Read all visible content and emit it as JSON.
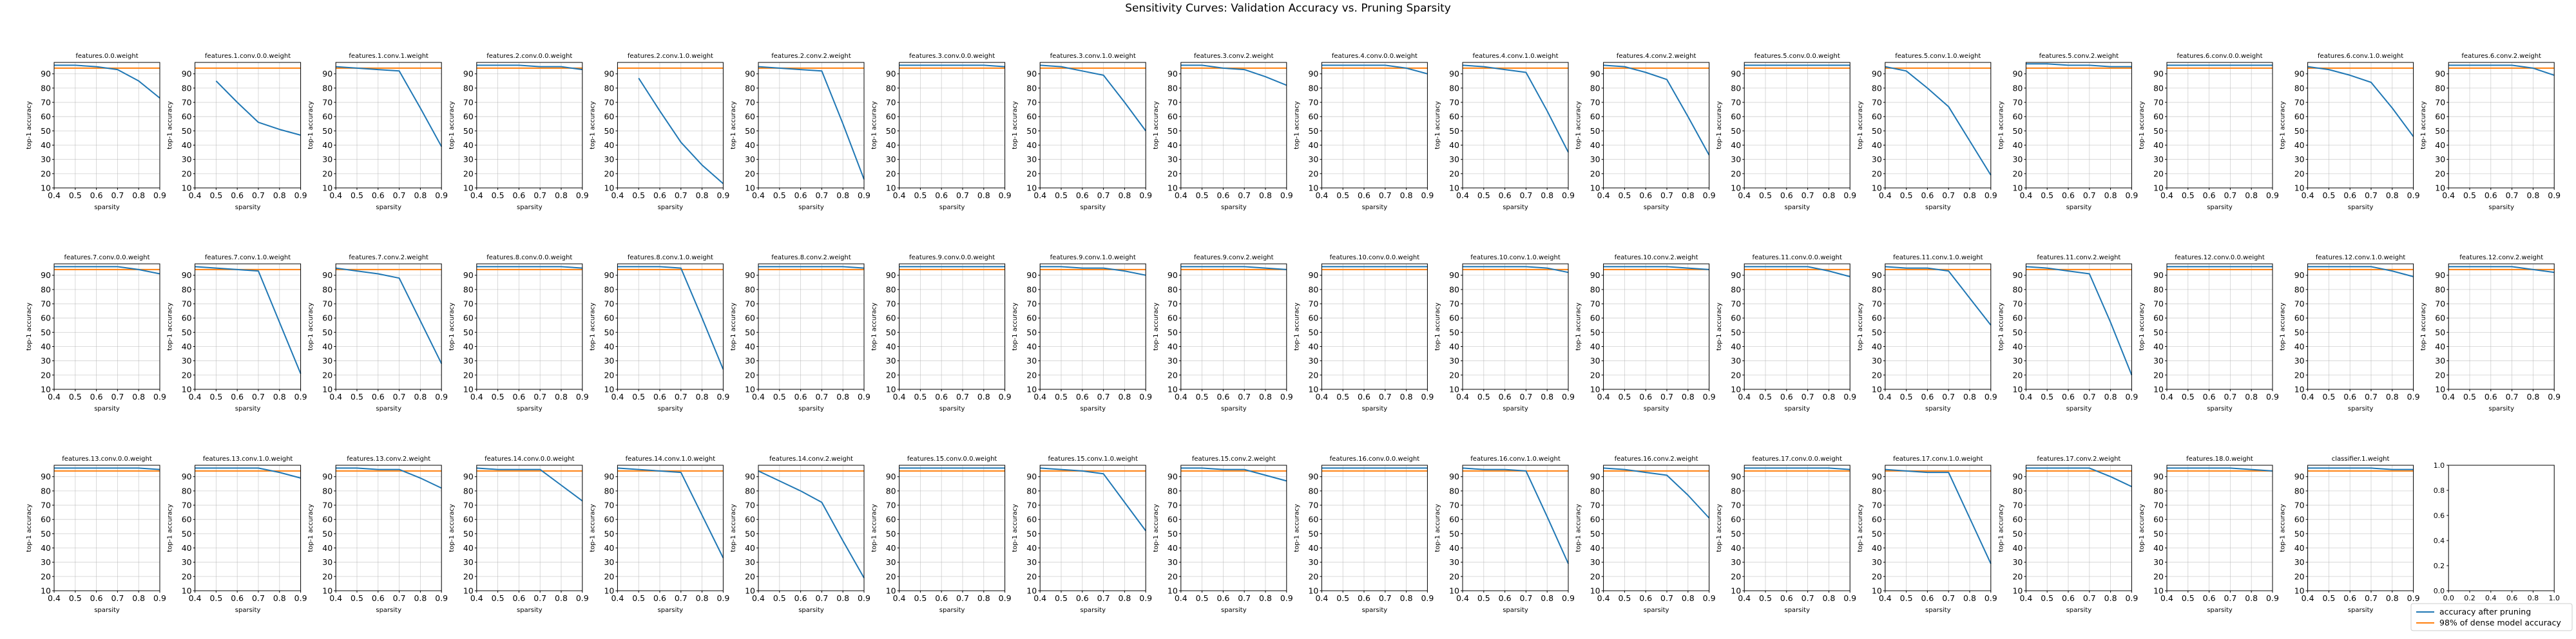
{
  "figure": {
    "title": "Sensitivity Curves: Validation Accuracy vs. Pruning Sparsity",
    "xlabel": "sparsity",
    "ylabel": "top-1 accuracy",
    "xticks": [
      0.4,
      0.5,
      0.6,
      0.7,
      0.8,
      0.9
    ],
    "yticks": [
      10,
      20,
      30,
      40,
      50,
      60,
      70,
      80,
      90
    ],
    "xlim": [
      0.4,
      0.9
    ],
    "ylim": [
      10,
      98
    ],
    "grid": true,
    "colors": {
      "pruned": "#1f77b4",
      "threshold": "#ff7f0e"
    },
    "legend": {
      "placement": "bottom-right",
      "entries": [
        "accuracy after pruning",
        "98% of dense model accuracy"
      ]
    },
    "empty_axes_ticks": [
      "0.0",
      "0.2",
      "0.4",
      "0.6",
      "0.8",
      "1.0"
    ]
  },
  "chart_data": {
    "type": "line",
    "x": [
      0.4,
      0.5,
      0.6,
      0.7,
      0.8,
      0.9
    ],
    "threshold": 94,
    "panels": [
      {
        "title": "features.0.0.weight",
        "values": [
          96,
          96,
          95,
          93,
          85,
          73
        ]
      },
      {
        "title": "features.1.conv.0.0.weight",
        "values": [
          null,
          85,
          70,
          56,
          51,
          47
        ]
      },
      {
        "title": "features.1.conv.1.weight",
        "values": [
          95,
          94,
          93,
          92,
          66,
          39
        ]
      },
      {
        "title": "features.2.conv.0.0.weight",
        "values": [
          96,
          96,
          96,
          95,
          95,
          93
        ]
      },
      {
        "title": "features.2.conv.1.0.weight",
        "values": [
          null,
          87,
          64,
          42,
          26,
          13
        ]
      },
      {
        "title": "features.2.conv.2.weight",
        "values": [
          95,
          94,
          93,
          92,
          55,
          16
        ]
      },
      {
        "title": "features.3.conv.0.0.weight",
        "values": [
          96,
          96,
          96,
          96,
          96,
          95
        ]
      },
      {
        "title": "features.3.conv.1.0.weight",
        "values": [
          96,
          95,
          92,
          89,
          70,
          50
        ]
      },
      {
        "title": "features.3.conv.2.weight",
        "values": [
          96,
          96,
          94,
          93,
          88,
          82
        ]
      },
      {
        "title": "features.4.conv.0.0.weight",
        "values": [
          96,
          96,
          96,
          96,
          94,
          90
        ]
      },
      {
        "title": "features.4.conv.1.0.weight",
        "values": [
          96,
          95,
          93,
          91,
          64,
          35
        ]
      },
      {
        "title": "features.4.conv.2.weight",
        "values": [
          96,
          95,
          91,
          86,
          60,
          33
        ]
      },
      {
        "title": "features.5.conv.0.0.weight",
        "values": [
          96,
          96,
          96,
          96,
          96,
          96
        ]
      },
      {
        "title": "features.5.conv.1.0.weight",
        "values": [
          95,
          92,
          80,
          67,
          43,
          19
        ]
      },
      {
        "title": "features.5.conv.2.weight",
        "values": [
          97,
          97,
          96,
          96,
          95,
          95
        ]
      },
      {
        "title": "features.6.conv.0.0.weight",
        "values": [
          96,
          96,
          96,
          96,
          96,
          96
        ]
      },
      {
        "title": "features.6.conv.1.0.weight",
        "values": [
          95,
          93,
          89,
          84,
          66,
          46
        ]
      },
      {
        "title": "features.6.conv.2.weight",
        "values": [
          96,
          96,
          96,
          96,
          94,
          89
        ]
      },
      {
        "title": "features.7.conv.0.0.weight",
        "values": [
          96,
          96,
          96,
          96,
          94,
          91
        ]
      },
      {
        "title": "features.7.conv.1.0.weight",
        "values": [
          96,
          95,
          94,
          93,
          57,
          21
        ]
      },
      {
        "title": "features.7.conv.2.weight",
        "values": [
          95,
          93,
          91,
          88,
          58,
          28
        ]
      },
      {
        "title": "features.8.conv.0.0.weight",
        "values": [
          96,
          96,
          96,
          96,
          96,
          95
        ]
      },
      {
        "title": "features.8.conv.1.0.weight",
        "values": [
          96,
          96,
          96,
          95,
          60,
          24
        ]
      },
      {
        "title": "features.8.conv.2.weight",
        "values": [
          96,
          96,
          96,
          96,
          96,
          95
        ]
      },
      {
        "title": "features.9.conv.0.0.weight",
        "values": [
          96,
          96,
          96,
          96,
          96,
          96
        ]
      },
      {
        "title": "features.9.conv.1.0.weight",
        "values": [
          96,
          96,
          95,
          95,
          93,
          90
        ]
      },
      {
        "title": "features.9.conv.2.weight",
        "values": [
          96,
          96,
          96,
          96,
          95,
          94
        ]
      },
      {
        "title": "features.10.conv.0.0.weight",
        "values": [
          96,
          96,
          96,
          96,
          96,
          96
        ]
      },
      {
        "title": "features.10.conv.1.0.weight",
        "values": [
          96,
          96,
          96,
          96,
          95,
          92
        ]
      },
      {
        "title": "features.10.conv.2.weight",
        "values": [
          96,
          96,
          96,
          96,
          95,
          94
        ]
      },
      {
        "title": "features.11.conv.0.0.weight",
        "values": [
          96,
          96,
          96,
          96,
          93,
          89
        ]
      },
      {
        "title": "features.11.conv.1.0.weight",
        "values": [
          96,
          95,
          95,
          93,
          74,
          55
        ]
      },
      {
        "title": "features.11.conv.2.weight",
        "values": [
          96,
          95,
          93,
          91,
          57,
          20
        ]
      },
      {
        "title": "features.12.conv.0.0.weight",
        "values": [
          96,
          96,
          96,
          96,
          96,
          96
        ]
      },
      {
        "title": "features.12.conv.1.0.weight",
        "values": [
          96,
          96,
          96,
          96,
          93,
          89
        ]
      },
      {
        "title": "features.12.conv.2.weight",
        "values": [
          96,
          96,
          96,
          96,
          94,
          92
        ]
      },
      {
        "title": "features.13.conv.0.0.weight",
        "values": [
          96,
          96,
          96,
          96,
          96,
          95
        ]
      },
      {
        "title": "features.13.conv.1.0.weight",
        "values": [
          96,
          96,
          96,
          96,
          93,
          89
        ]
      },
      {
        "title": "features.13.conv.2.weight",
        "values": [
          96,
          96,
          95,
          95,
          89,
          82
        ]
      },
      {
        "title": "features.14.conv.0.0.weight",
        "values": [
          96,
          95,
          95,
          95,
          84,
          73
        ]
      },
      {
        "title": "features.14.conv.1.0.weight",
        "values": [
          96,
          95,
          94,
          93,
          63,
          33
        ]
      },
      {
        "title": "features.14.conv.2.weight",
        "values": [
          94,
          87,
          80,
          72,
          45,
          19
        ]
      },
      {
        "title": "features.15.conv.0.0.weight",
        "values": [
          96,
          96,
          96,
          96,
          96,
          96
        ]
      },
      {
        "title": "features.15.conv.1.0.weight",
        "values": [
          96,
          95,
          94,
          92,
          72,
          52
        ]
      },
      {
        "title": "features.15.conv.2.weight",
        "values": [
          96,
          96,
          95,
          95,
          91,
          87
        ]
      },
      {
        "title": "features.16.conv.0.0.weight",
        "values": [
          96,
          96,
          96,
          96,
          96,
          96
        ]
      },
      {
        "title": "features.16.conv.1.0.weight",
        "values": [
          96,
          95,
          95,
          94,
          62,
          29
        ]
      },
      {
        "title": "features.16.conv.2.weight",
        "values": [
          96,
          95,
          93,
          91,
          77,
          61
        ]
      },
      {
        "title": "features.17.conv.0.0.weight",
        "values": [
          96,
          96,
          96,
          96,
          96,
          95
        ]
      },
      {
        "title": "features.17.conv.1.0.weight",
        "values": [
          95,
          94,
          93,
          93,
          61,
          29
        ]
      },
      {
        "title": "features.17.conv.2.weight",
        "values": [
          96,
          96,
          96,
          96,
          90,
          83
        ]
      },
      {
        "title": "features.18.0.weight",
        "values": [
          96,
          96,
          96,
          96,
          95,
          94
        ]
      },
      {
        "title": "classifier.1.weight",
        "values": [
          96,
          96,
          96,
          96,
          95,
          95
        ]
      }
    ]
  }
}
